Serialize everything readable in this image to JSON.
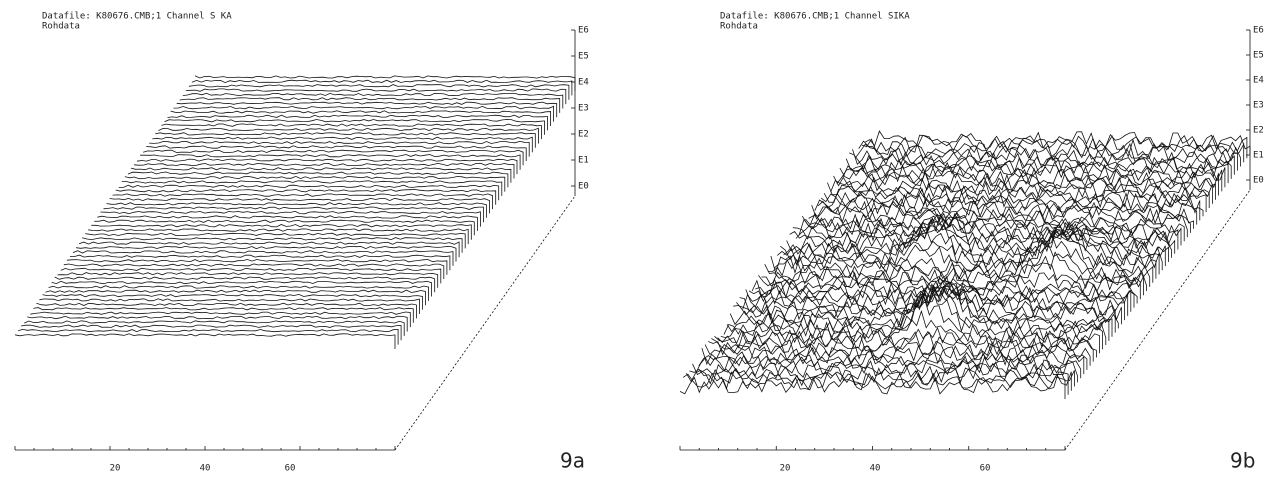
{
  "panels": [
    {
      "header": [
        "Datafile: K80676.CMB;1  Channel S KA",
        "Rohdata"
      ],
      "z_ticks": [
        "E6",
        "E5",
        "E4",
        "E3",
        "E2",
        "E1",
        "E0"
      ],
      "x_ticks": [
        "20",
        "40",
        "60"
      ],
      "label": "9a"
    },
    {
      "header": [
        "Datafile: K80676.CMB;1  Channel SIKA",
        "Rohdata"
      ],
      "z_ticks": [
        "E6",
        "E5",
        "E4",
        "E3",
        "E2",
        "E1",
        "E0"
      ],
      "x_ticks": [
        "20",
        "40",
        "60"
      ],
      "label": "9b"
    }
  ]
}
